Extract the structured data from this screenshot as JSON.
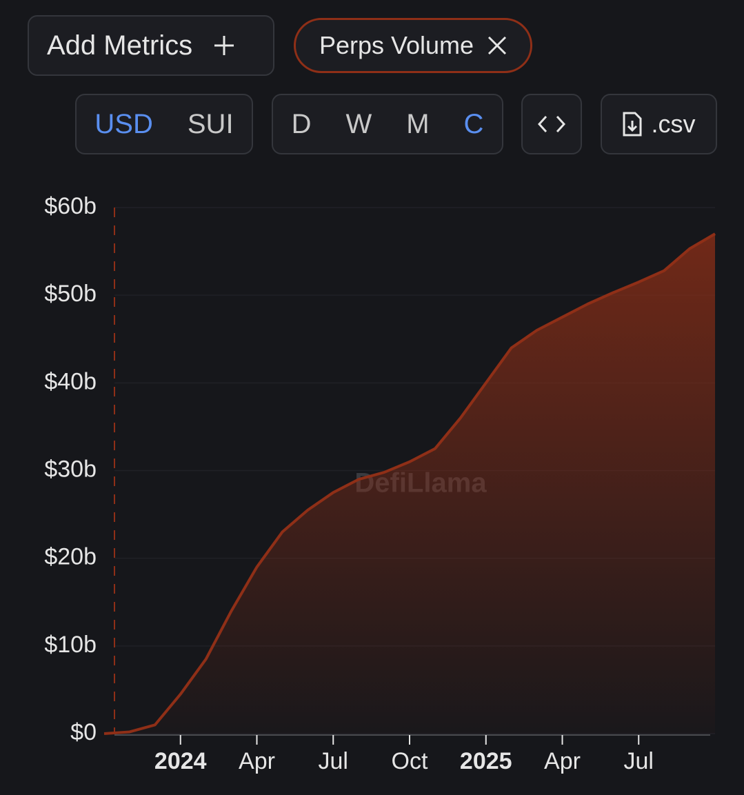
{
  "ui": {
    "add_metrics": "Add Metrics",
    "metric_chip": "Perps Volume",
    "currency_options": [
      "USD",
      "SUI"
    ],
    "active_currency": "USD",
    "interval_options": [
      "D",
      "W",
      "M",
      "C"
    ],
    "active_interval": "C",
    "csv": ".csv"
  },
  "chart_data": {
    "type": "area",
    "watermark": "DefiLlama",
    "x": [
      "2023-10",
      "2023-11",
      "2023-12",
      "2024-01",
      "2024-02",
      "2024-03",
      "2024-04",
      "2024-05",
      "2024-06",
      "2024-07",
      "2024-08",
      "2024-09",
      "2024-10",
      "2024-11",
      "2024-12",
      "2025-01",
      "2025-02",
      "2025-03",
      "2025-04",
      "2025-05",
      "2025-06",
      "2025-07",
      "2025-08",
      "2025-09",
      "2025-10"
    ],
    "values": [
      0,
      0.2,
      1,
      4.5,
      8.5,
      14,
      19,
      23,
      25.5,
      27.5,
      29,
      29.8,
      31,
      32.5,
      36,
      40,
      44,
      46,
      47.5,
      49,
      50.3,
      51.5,
      52.8,
      55.3,
      57
    ],
    "color": "#8f2f17",
    "xlim": [
      "2023-10",
      "2025-10"
    ],
    "xticks": [
      {
        "value": "2024-01",
        "label": "2024"
      },
      {
        "value": "2024-04",
        "label": "Apr"
      },
      {
        "value": "2024-07",
        "label": "Jul"
      },
      {
        "value": "2024-10",
        "label": "Oct"
      },
      {
        "value": "2025-01",
        "label": "2025"
      },
      {
        "value": "2025-04",
        "label": "Apr"
      },
      {
        "value": "2025-07",
        "label": "Jul"
      }
    ],
    "ylim": [
      0,
      60
    ],
    "yticks": [
      {
        "value": 0,
        "label": "$0"
      },
      {
        "value": 10,
        "label": "$10b"
      },
      {
        "value": 20,
        "label": "$20b"
      },
      {
        "value": 30,
        "label": "$30b"
      },
      {
        "value": 40,
        "label": "$40b"
      },
      {
        "value": 50,
        "label": "$50b"
      },
      {
        "value": 60,
        "label": "$60b"
      }
    ],
    "grid": true
  }
}
